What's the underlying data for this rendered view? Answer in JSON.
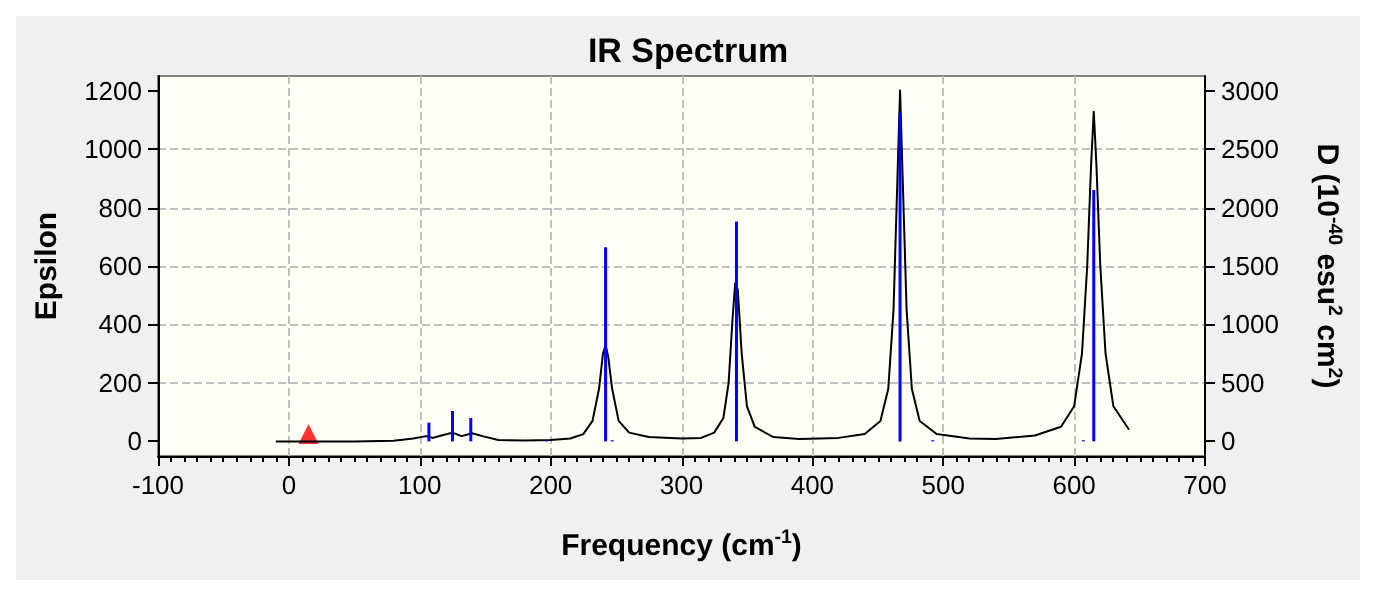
{
  "chart_data": {
    "type": "line",
    "title": "IR Spectrum",
    "xlabel": "Frequency (cm$^{-1}$)",
    "ylabel": "Epsilon",
    "y2label": "D (10$^{-40}$ esu$^{2}$ cm$^{2}$)",
    "xlim": [
      -100,
      700
    ],
    "xticks": [
      -100,
      0,
      100,
      200,
      300,
      400,
      500,
      600,
      700
    ],
    "ylim": [
      -50,
      1250
    ],
    "yticks": [
      0,
      200,
      400,
      600,
      800,
      1000,
      1200
    ],
    "y2lim": [
      -125,
      3125
    ],
    "y2ticks": [
      0,
      500,
      1000,
      1500,
      2000,
      2500,
      3000
    ],
    "grid": true,
    "series": [
      {
        "color": "#000000",
        "marker": "none",
        "x": [
          -10,
          0,
          50,
          80,
          95,
          105,
          110,
          118,
          125,
          132,
          140,
          148,
          160,
          180,
          200,
          215,
          225,
          232,
          237,
          240,
          242,
          244,
          247,
          252,
          260,
          275,
          300,
          315,
          325,
          332,
          336,
          339,
          341,
          343,
          346,
          350,
          356,
          370,
          390,
          420,
          440,
          452,
          458,
          462,
          465,
          467,
          469,
          472,
          476,
          482,
          495,
          520,
          540,
          570,
          590,
          600,
          606,
          610,
          613,
          615,
          617,
          620,
          624,
          630,
          642
        ],
        "values": [
          0,
          0,
          0,
          2,
          10,
          18,
          12,
          22,
          30,
          18,
          28,
          18,
          5,
          3,
          5,
          10,
          25,
          70,
          180,
          300,
          330,
          290,
          180,
          70,
          30,
          15,
          10,
          12,
          30,
          80,
          200,
          420,
          540,
          520,
          300,
          120,
          50,
          15,
          8,
          12,
          25,
          70,
          180,
          450,
          900,
          1200,
          900,
          450,
          180,
          70,
          25,
          10,
          8,
          20,
          50,
          120,
          300,
          600,
          950,
          1128,
          950,
          600,
          300,
          120,
          40
        ]
      },
      {
        "type": "bar",
        "axis": "y2",
        "color": "#0000ff",
        "x": [
          107,
          125,
          139,
          197,
          242,
          247,
          342,
          467,
          492,
          607,
          615
        ],
        "values": [
          160,
          260,
          200,
          10,
          1660,
          10,
          1880,
          2810,
          10,
          10,
          2150
        ]
      },
      {
        "type": "scatter",
        "color": "#ff0000",
        "marker": "triangle",
        "x": [
          15
        ],
        "values": [
          25
        ]
      }
    ]
  }
}
